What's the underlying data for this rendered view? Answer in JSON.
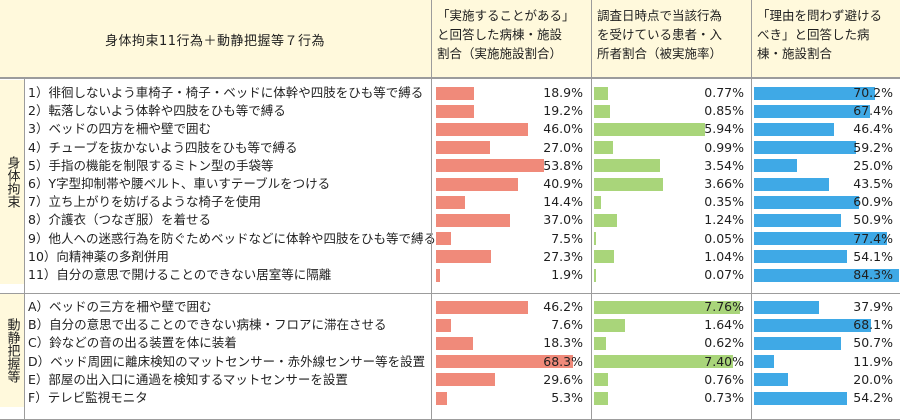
{
  "header": {
    "title": "身体拘束11行為＋動静把握等７行為",
    "col1": "「実施することがある」\nと回答した病棟・施設\n割合（実施施設割合）",
    "col2": "調査日時点で当該行為\nを受けている患者・入\n所者割合（被実施率）",
    "col3": "「理由を問わず避ける\nべき」と回答した病\n棟・施設割合"
  },
  "colors": {
    "header_bg": "#fff9dc",
    "bar1": "#f08a7a",
    "bar2": "#a9d57a",
    "bar3": "#3fa9e6",
    "grid": "#9c9c9c"
  },
  "chart_data": {
    "type": "bar",
    "groups": [
      {
        "label": "身体拘束",
        "rows": [
          {
            "label": "1）徘徊しないよう車椅子・椅子・ベッドに体幹や四肢をひも等で縛る",
            "v1": 18.9,
            "v2": 0.77,
            "v3": 70.2
          },
          {
            "label": "2）転落しないよう体幹や四肢をひも等で縛る",
            "v1": 19.2,
            "v2": 0.85,
            "v3": 67.4
          },
          {
            "label": "3）ベッドの四方を柵や壁で囲む",
            "v1": 46.0,
            "v2": 5.94,
            "v3": 46.4
          },
          {
            "label": "4）チューブを抜かないよう四肢をひも等で縛る",
            "v1": 27.0,
            "v2": 0.99,
            "v3": 59.2
          },
          {
            "label": "5）手指の機能を制限するミトン型の手袋等",
            "v1": 53.8,
            "v2": 3.54,
            "v3": 25.0
          },
          {
            "label": "6）Y字型抑制帯や腰ベルト、車いすテーブルをつける",
            "v1": 40.9,
            "v2": 3.66,
            "v3": 43.5
          },
          {
            "label": "7）立ち上がりを妨げるような椅子を使用",
            "v1": 14.4,
            "v2": 0.35,
            "v3": 60.9
          },
          {
            "label": "8）介護衣（つなぎ服）を着せる",
            "v1": 37.0,
            "v2": 1.24,
            "v3": 50.9
          },
          {
            "label": "9）他人への迷惑行為を防ぐためベッドなどに体幹や四肢をひも等で縛る",
            "v1": 7.5,
            "v2": 0.05,
            "v3": 77.4
          },
          {
            "label": "10）向精神薬の多剤併用",
            "v1": 27.3,
            "v2": 1.04,
            "v3": 54.1
          },
          {
            "label": "11）自分の意思で開けることのできない居室等に隔離",
            "v1": 1.9,
            "v2": 0.07,
            "v3": 84.3
          }
        ]
      },
      {
        "label": "動静把握等",
        "rows": [
          {
            "label": "A）ベッドの三方を柵や壁で囲む",
            "v1": 46.2,
            "v2": 7.76,
            "v3": 37.9
          },
          {
            "label": "B）自分の意思で出ることのできない病棟・フロアに滞在させる",
            "v1": 7.6,
            "v2": 1.64,
            "v3": 68.1
          },
          {
            "label": "C）鈴などの音の出る装置を体に装着",
            "v1": 18.3,
            "v2": 0.62,
            "v3": 50.7
          },
          {
            "label": "D）ベッド周囲に離床検知のマットセンサー・赤外線センサー等を設置",
            "v1": 68.3,
            "v2": 7.4,
            "v3": 11.9
          },
          {
            "label": "E）部屋の出入口に通過を検知するマットセンサーを設置",
            "v1": 29.6,
            "v2": 0.76,
            "v3": 20.0
          },
          {
            "label": "F）テレビ監視モニタ",
            "v1": 5.3,
            "v2": 0.73,
            "v3": 54.2
          }
        ]
      }
    ],
    "value_labels": {
      "v1": [
        "18.9%",
        "19.2%",
        "46.0%",
        "27.0%",
        "53.8%",
        "40.9%",
        "14.4%",
        "37.0%",
        "7.5%",
        "27.3%",
        "1.9%",
        "46.2%",
        "7.6%",
        "18.3%",
        "68.3%",
        "29.6%",
        "5.3%"
      ],
      "v2": [
        "0.77%",
        "0.85%",
        "5.94%",
        "0.99%",
        "3.54%",
        "3.66%",
        "0.35%",
        "1.24%",
        "0.05%",
        "1.04%",
        "0.07%",
        "7.76%",
        "1.64%",
        "0.62%",
        "7.40%",
        "0.76%",
        "0.73%"
      ],
      "v3": [
        "70.2%",
        "67.4%",
        "46.4%",
        "59.2%",
        "25.0%",
        "43.5%",
        "60.9%",
        "50.9%",
        "77.4%",
        "54.1%",
        "84.3%",
        "37.9%",
        "68.1%",
        "50.7%",
        "11.9%",
        "20.0%",
        "54.2%"
      ]
    },
    "scales": {
      "v1_max": 80,
      "v2_max": 8,
      "v3_max": 85
    }
  }
}
